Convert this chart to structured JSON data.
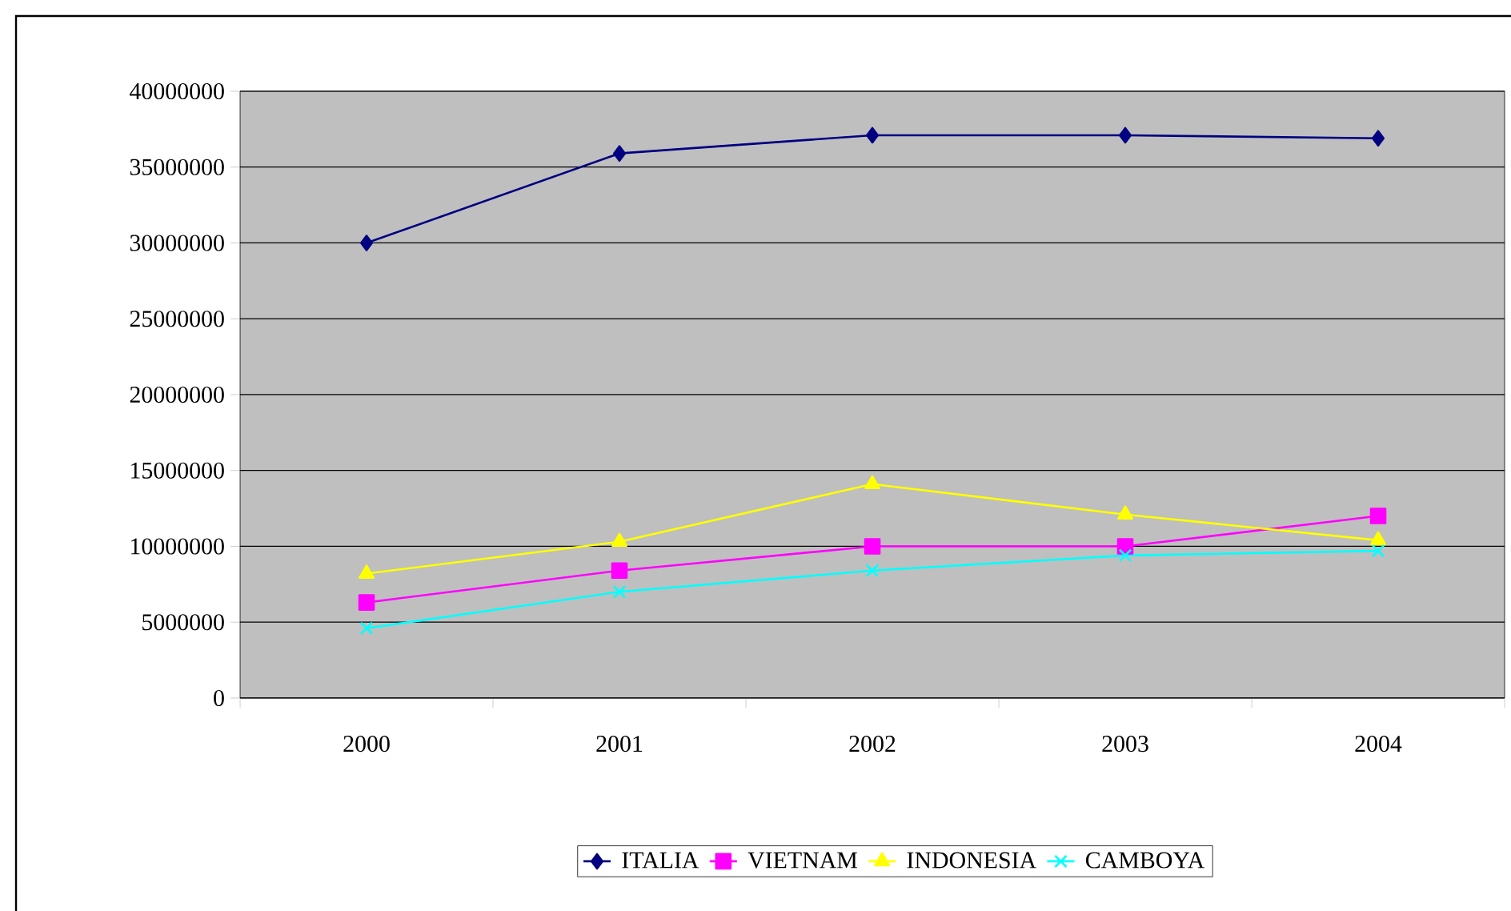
{
  "chart_data": {
    "type": "line",
    "categories": [
      "2000",
      "2001",
      "2002",
      "2003",
      "2004"
    ],
    "series": [
      {
        "name": "ITALIA",
        "color": "#000080",
        "marker": "diamond",
        "values": [
          30000000,
          35900000,
          37100000,
          37100000,
          36900000
        ]
      },
      {
        "name": "VIETNAM",
        "color": "#ff00ff",
        "marker": "square",
        "values": [
          6300000,
          8400000,
          10000000,
          10000000,
          12000000
        ]
      },
      {
        "name": "INDONESIA",
        "color": "#ffff00",
        "marker": "triangle",
        "values": [
          8200000,
          10300000,
          14100000,
          12100000,
          10400000
        ]
      },
      {
        "name": "CAMBOYA",
        "color": "#00ffff",
        "marker": "cross",
        "values": [
          4600000,
          7000000,
          8400000,
          9400000,
          9700000
        ]
      }
    ],
    "ylim": [
      0,
      40000000
    ],
    "yticks": [
      0,
      5000000,
      10000000,
      15000000,
      20000000,
      25000000,
      30000000,
      35000000,
      40000000
    ],
    "grid": "y",
    "legend": "bottom",
    "line_style": "solid"
  }
}
